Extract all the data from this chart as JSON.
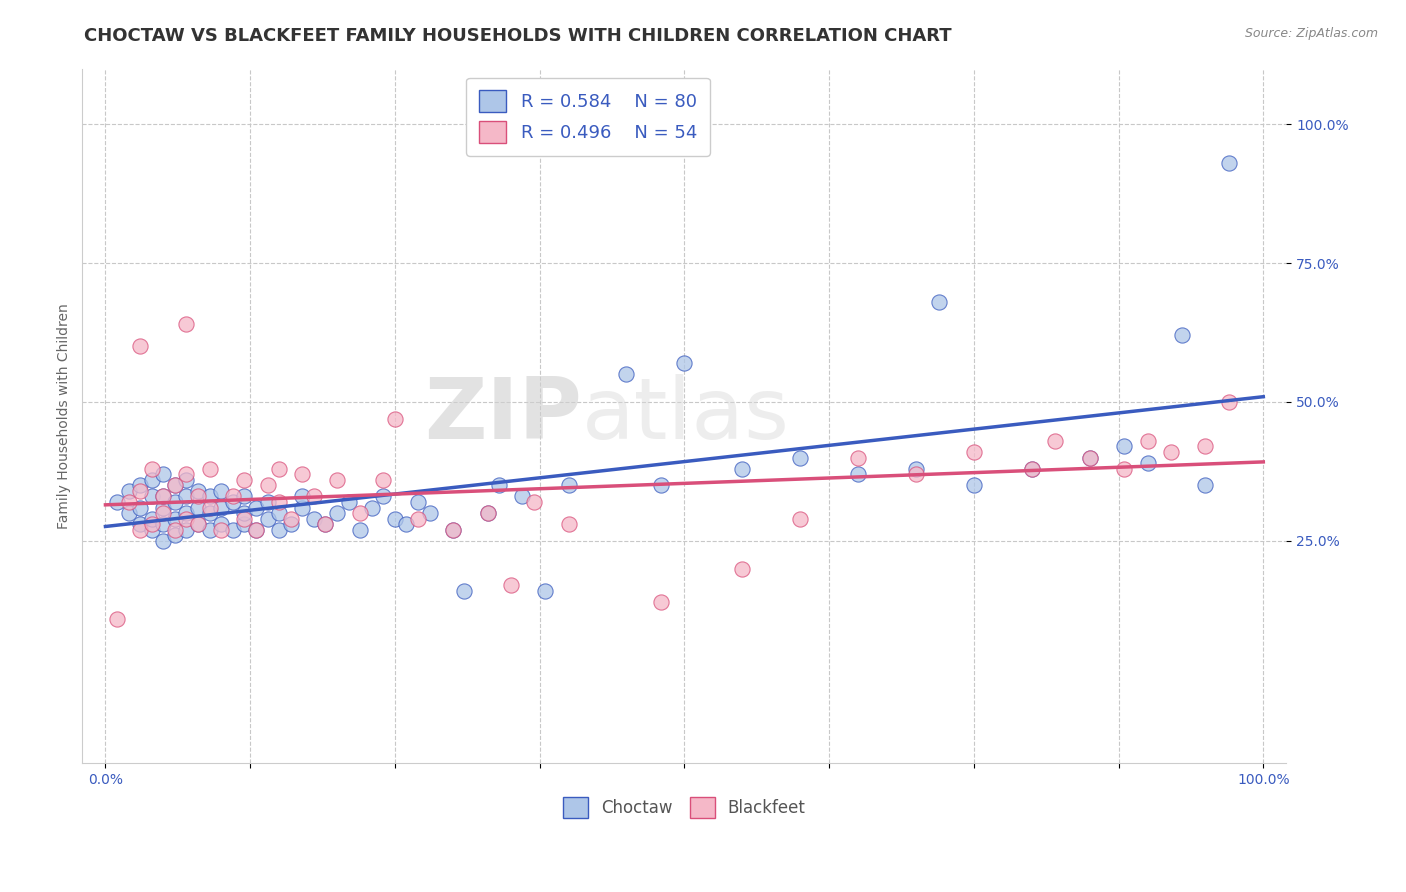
{
  "title": "CHOCTAW VS BLACKFEET FAMILY HOUSEHOLDS WITH CHILDREN CORRELATION CHART",
  "source": "Source: ZipAtlas.com",
  "ylabel": "Family Households with Children",
  "choctaw_color": "#aec6e8",
  "blackfeet_color": "#f5b8c8",
  "choctaw_line_color": "#3a5bbf",
  "blackfeet_line_color": "#d94f7a",
  "choctaw_r": 0.584,
  "choctaw_n": 80,
  "blackfeet_r": 0.496,
  "blackfeet_n": 54,
  "background_color": "#ffffff",
  "grid_color": "#c8c8c8",
  "watermark_zip": "ZIP",
  "watermark_atlas": "atlas",
  "xlim": [
    -0.02,
    1.02
  ],
  "ylim": [
    -0.15,
    1.1
  ],
  "xticks": [
    0,
    0.125,
    0.25,
    0.375,
    0.5,
    0.625,
    0.75,
    0.875,
    1.0
  ],
  "yticks": [
    0.25,
    0.5,
    0.75,
    1.0
  ],
  "xtick_labels": [
    "0.0%",
    "",
    "",
    "",
    "",
    "",
    "",
    "",
    "100.0%"
  ],
  "ytick_labels": [
    "25.0%",
    "50.0%",
    "75.0%",
    "100.0%"
  ],
  "choctaw_x": [
    0.01,
    0.02,
    0.02,
    0.03,
    0.03,
    0.03,
    0.04,
    0.04,
    0.04,
    0.04,
    0.05,
    0.05,
    0.05,
    0.05,
    0.05,
    0.06,
    0.06,
    0.06,
    0.06,
    0.07,
    0.07,
    0.07,
    0.07,
    0.08,
    0.08,
    0.08,
    0.09,
    0.09,
    0.09,
    0.1,
    0.1,
    0.1,
    0.11,
    0.11,
    0.12,
    0.12,
    0.12,
    0.13,
    0.13,
    0.14,
    0.14,
    0.15,
    0.15,
    0.16,
    0.17,
    0.17,
    0.18,
    0.19,
    0.2,
    0.21,
    0.22,
    0.23,
    0.24,
    0.25,
    0.26,
    0.27,
    0.28,
    0.3,
    0.31,
    0.33,
    0.34,
    0.36,
    0.38,
    0.4,
    0.45,
    0.48,
    0.5,
    0.55,
    0.6,
    0.65,
    0.7,
    0.72,
    0.75,
    0.8,
    0.85,
    0.88,
    0.9,
    0.93,
    0.95,
    0.97
  ],
  "choctaw_y": [
    0.32,
    0.3,
    0.34,
    0.28,
    0.31,
    0.35,
    0.27,
    0.29,
    0.33,
    0.36,
    0.25,
    0.28,
    0.31,
    0.33,
    0.37,
    0.26,
    0.29,
    0.32,
    0.35,
    0.27,
    0.3,
    0.33,
    0.36,
    0.28,
    0.31,
    0.34,
    0.27,
    0.3,
    0.33,
    0.28,
    0.31,
    0.34,
    0.27,
    0.32,
    0.28,
    0.3,
    0.33,
    0.27,
    0.31,
    0.29,
    0.32,
    0.27,
    0.3,
    0.28,
    0.31,
    0.33,
    0.29,
    0.28,
    0.3,
    0.32,
    0.27,
    0.31,
    0.33,
    0.29,
    0.28,
    0.32,
    0.3,
    0.27,
    0.16,
    0.3,
    0.35,
    0.33,
    0.16,
    0.35,
    0.55,
    0.35,
    0.57,
    0.38,
    0.4,
    0.37,
    0.38,
    0.68,
    0.35,
    0.38,
    0.4,
    0.42,
    0.39,
    0.62,
    0.35,
    0.93
  ],
  "blackfeet_x": [
    0.01,
    0.02,
    0.03,
    0.03,
    0.04,
    0.04,
    0.05,
    0.05,
    0.06,
    0.06,
    0.07,
    0.07,
    0.08,
    0.08,
    0.09,
    0.09,
    0.1,
    0.11,
    0.12,
    0.12,
    0.13,
    0.14,
    0.15,
    0.15,
    0.16,
    0.17,
    0.18,
    0.19,
    0.2,
    0.22,
    0.24,
    0.25,
    0.27,
    0.3,
    0.33,
    0.35,
    0.37,
    0.4,
    0.48,
    0.55,
    0.6,
    0.65,
    0.7,
    0.75,
    0.8,
    0.82,
    0.85,
    0.88,
    0.9,
    0.92,
    0.95,
    0.97,
    0.03,
    0.07
  ],
  "blackfeet_y": [
    0.11,
    0.32,
    0.27,
    0.34,
    0.28,
    0.38,
    0.3,
    0.33,
    0.27,
    0.35,
    0.29,
    0.37,
    0.28,
    0.33,
    0.31,
    0.38,
    0.27,
    0.33,
    0.36,
    0.29,
    0.27,
    0.35,
    0.32,
    0.38,
    0.29,
    0.37,
    0.33,
    0.28,
    0.36,
    0.3,
    0.36,
    0.47,
    0.29,
    0.27,
    0.3,
    0.17,
    0.32,
    0.28,
    0.14,
    0.2,
    0.29,
    0.4,
    0.37,
    0.41,
    0.38,
    0.43,
    0.4,
    0.38,
    0.43,
    0.41,
    0.42,
    0.5,
    0.6,
    0.64
  ],
  "title_fontsize": 13,
  "axis_label_fontsize": 10,
  "tick_fontsize": 10,
  "legend_fontsize": 13
}
